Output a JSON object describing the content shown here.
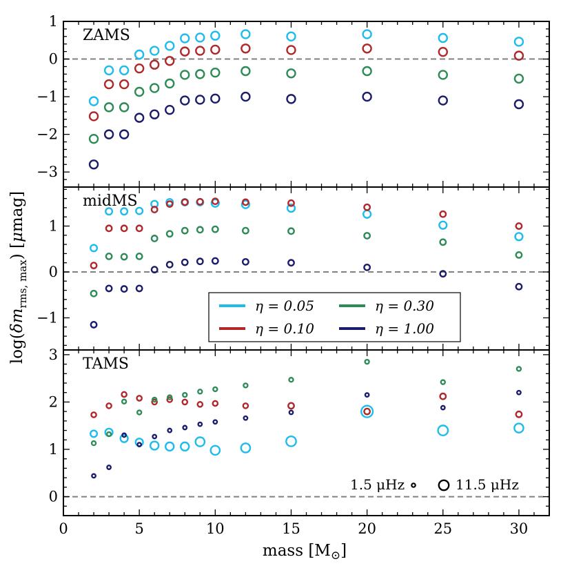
{
  "chart_data": {
    "type": "scatter",
    "xlabel": "mass [M⊙]",
    "ylabel": "log(δm rms, max) [μmag]",
    "xlim": [
      0,
      32
    ],
    "x_ticks": [
      "0",
      "5",
      "10",
      "15",
      "20",
      "25",
      "30"
    ],
    "series_colors": {
      "eta_0.05": "#1EBBEE",
      "eta_0.10": "#B0282A",
      "eta_0.30": "#2E8B57",
      "eta_1.00": "#1B1D6B"
    },
    "legend": [
      {
        "key": "eta_0.05",
        "label": "η = 0.05"
      },
      {
        "key": "eta_0.30",
        "label": "η = 0.30"
      },
      {
        "key": "eta_0.10",
        "label": "η = 0.10"
      },
      {
        "key": "eta_1.00",
        "label": "η = 1.00"
      }
    ],
    "size_legend": {
      "small_label": "1.5 μHz",
      "large_label": "11.5 μHz",
      "small_freq": 1.5,
      "large_freq": 11.5
    },
    "panels": [
      {
        "label": "ZAMS",
        "ylim": [
          -3.4,
          1
        ],
        "y_ticks": [
          "1",
          "0",
          "−1",
          "−2",
          "−3"
        ],
        "y_tick_values": [
          1,
          0,
          -1,
          -2,
          -3
        ],
        "series": [
          {
            "key": "eta_0.05",
            "masses": [
              2,
              3,
              4,
              5,
              6,
              7,
              8,
              9,
              10,
              12,
              15,
              20,
              25,
              30
            ],
            "values": [
              -1.12,
              -0.3,
              -0.3,
              0.12,
              0.22,
              0.35,
              0.55,
              0.57,
              0.62,
              0.66,
              0.6,
              0.66,
              0.56,
              0.46
            ],
            "freqs": [
              7,
              7,
              7,
              7,
              7,
              7,
              7,
              7,
              7,
              7,
              7,
              7,
              7,
              7
            ]
          },
          {
            "key": "eta_0.10",
            "masses": [
              2,
              3,
              4,
              5,
              6,
              7,
              8,
              9,
              10,
              12,
              15,
              20,
              25,
              30
            ],
            "values": [
              -1.52,
              -0.67,
              -0.67,
              -0.25,
              -0.15,
              -0.05,
              0.2,
              0.22,
              0.25,
              0.28,
              0.24,
              0.28,
              0.19,
              0.09
            ],
            "freqs": [
              7,
              7,
              7,
              7,
              7,
              7,
              7,
              7,
              7,
              7,
              7,
              7,
              7,
              7
            ]
          },
          {
            "key": "eta_0.30",
            "masses": [
              2,
              3,
              4,
              5,
              6,
              7,
              8,
              9,
              10,
              12,
              15,
              20,
              25,
              30
            ],
            "values": [
              -2.12,
              -1.28,
              -1.28,
              -0.87,
              -0.77,
              -0.65,
              -0.42,
              -0.4,
              -0.36,
              -0.32,
              -0.38,
              -0.32,
              -0.42,
              -0.52
            ],
            "freqs": [
              7,
              7,
              7,
              7,
              7,
              7,
              7,
              7,
              7,
              7,
              7,
              7,
              7,
              7
            ]
          },
          {
            "key": "eta_1.00",
            "masses": [
              2,
              3,
              4,
              5,
              6,
              7,
              8,
              9,
              10,
              12,
              15,
              20,
              25,
              30
            ],
            "values": [
              -2.8,
              -2.0,
              -2.0,
              -1.56,
              -1.47,
              -1.35,
              -1.1,
              -1.08,
              -1.05,
              -1.0,
              -1.06,
              -1.0,
              -1.1,
              -1.2
            ],
            "freqs": [
              7,
              7,
              7,
              7,
              7,
              7,
              7,
              7,
              7,
              7,
              7,
              7,
              7,
              7
            ]
          }
        ]
      },
      {
        "label": "midMS",
        "ylim": [
          -1.7,
          1.85
        ],
        "y_ticks": [
          "1",
          "0",
          "−1"
        ],
        "y_tick_values": [
          1,
          0,
          -1
        ],
        "series": [
          {
            "key": "eta_0.05",
            "masses": [
              2,
              3,
              4,
              5,
              6,
              7,
              8,
              9,
              10,
              12,
              15,
              20,
              25,
              30
            ],
            "values": [
              0.52,
              1.32,
              1.32,
              1.33,
              1.48,
              1.52,
              1.52,
              1.52,
              1.5,
              1.47,
              1.39,
              1.26,
              1.02,
              0.77
            ],
            "freqs": [
              5,
              5,
              5,
              5,
              5,
              5,
              5,
              5,
              6,
              6,
              6,
              6,
              6,
              6
            ]
          },
          {
            "key": "eta_0.10",
            "masses": [
              2,
              3,
              4,
              5,
              6,
              7,
              8,
              9,
              10,
              12,
              15,
              20,
              25,
              30
            ],
            "values": [
              0.14,
              0.95,
              0.95,
              0.95,
              1.36,
              1.48,
              1.52,
              1.53,
              1.54,
              1.52,
              1.5,
              1.41,
              1.26,
              1.0
            ],
            "freqs": [
              4,
              4,
              4,
              4,
              4,
              4,
              4,
              4,
              4,
              4,
              4,
              4,
              4,
              4
            ]
          },
          {
            "key": "eta_0.30",
            "masses": [
              2,
              3,
              4,
              5,
              6,
              7,
              8,
              9,
              10,
              12,
              15,
              20,
              25,
              30
            ],
            "values": [
              -0.47,
              0.34,
              0.33,
              0.34,
              0.73,
              0.83,
              0.9,
              0.92,
              0.93,
              0.9,
              0.89,
              0.79,
              0.65,
              0.37
            ],
            "freqs": [
              4,
              4,
              4,
              4,
              4,
              4,
              4,
              4,
              4,
              4,
              4,
              4,
              4,
              4
            ]
          },
          {
            "key": "eta_1.00",
            "masses": [
              2,
              3,
              4,
              5,
              6,
              7,
              8,
              9,
              10,
              12,
              15,
              20,
              25,
              30
            ],
            "values": [
              -1.15,
              -0.36,
              -0.37,
              -0.36,
              0.05,
              0.16,
              0.21,
              0.23,
              0.24,
              0.22,
              0.2,
              0.1,
              -0.04,
              -0.32
            ],
            "freqs": [
              4,
              4,
              4,
              4,
              4,
              4,
              4,
              4,
              4,
              4,
              4,
              4,
              4,
              4
            ]
          }
        ]
      },
      {
        "label": "TAMS",
        "ylim": [
          -0.4,
          3.1
        ],
        "y_ticks": [
          "3",
          "2",
          "1",
          "0"
        ],
        "y_tick_values": [
          3,
          2,
          1,
          0
        ],
        "series": [
          {
            "key": "eta_0.05",
            "masses": [
              2,
              3,
              4,
              5,
              6,
              7,
              8,
              9,
              10,
              12,
              15,
              20,
              25,
              30
            ],
            "values": [
              1.33,
              1.36,
              1.23,
              1.15,
              1.08,
              1.06,
              1.06,
              1.16,
              0.98,
              1.03,
              1.17,
              1.8,
              1.4,
              1.45
            ],
            "freqs": [
              5,
              6,
              6,
              6,
              7,
              7,
              7,
              8,
              8,
              8,
              9,
              11,
              9,
              8
            ]
          },
          {
            "key": "eta_0.10",
            "masses": [
              2,
              3,
              4,
              5,
              6,
              7,
              8,
              9,
              10,
              12,
              15,
              20,
              25,
              30
            ],
            "values": [
              1.73,
              1.92,
              2.16,
              2.08,
              2.0,
              2.05,
              2.0,
              1.95,
              1.97,
              1.92,
              1.92,
              1.8,
              2.12,
              1.74
            ],
            "freqs": [
              3,
              3,
              3,
              3,
              3,
              3,
              3,
              3,
              3,
              3,
              4,
              4,
              4,
              4
            ]
          },
          {
            "key": "eta_0.30",
            "masses": [
              2,
              3,
              4,
              5,
              6,
              7,
              8,
              9,
              10,
              12,
              15,
              20,
              25,
              30
            ],
            "values": [
              1.13,
              1.32,
              2.01,
              1.78,
              2.05,
              2.1,
              2.15,
              2.22,
              2.27,
              2.35,
              2.47,
              2.85,
              2.42,
              2.7
            ],
            "freqs": [
              2,
              2,
              2,
              2,
              2,
              2,
              2,
              2,
              2,
              2,
              2,
              2,
              2,
              2
            ]
          },
          {
            "key": "eta_1.00",
            "masses": [
              2,
              3,
              4,
              5,
              6,
              7,
              8,
              9,
              10,
              12,
              15,
              20,
              25,
              30
            ],
            "values": [
              0.44,
              0.62,
              1.3,
              1.1,
              1.27,
              1.4,
              1.46,
              1.53,
              1.58,
              1.66,
              1.78,
              2.15,
              1.88,
              2.2
            ],
            "freqs": [
              1.5,
              1.5,
              1.5,
              1.5,
              1.5,
              1.5,
              1.5,
              1.5,
              1.5,
              1.5,
              1.5,
              1.5,
              1.5,
              1.5
            ]
          }
        ]
      }
    ]
  }
}
